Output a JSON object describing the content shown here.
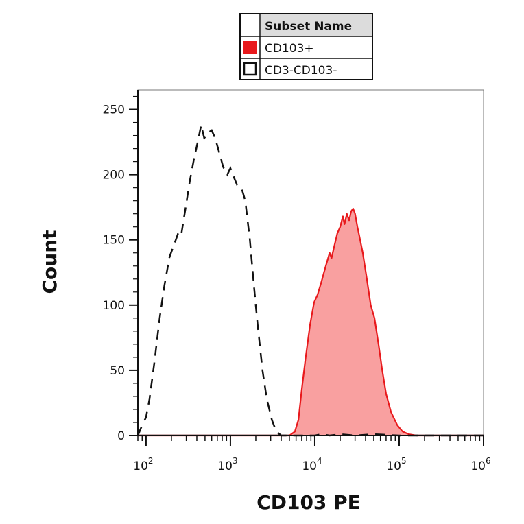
{
  "chart_data": {
    "type": "area",
    "xlabel": "CD103 PE",
    "ylabel": "Count",
    "x_scale": "log",
    "xlim": [
      80,
      1000000
    ],
    "ylim": [
      0,
      265
    ],
    "y_ticks": [
      0,
      50,
      100,
      150,
      200,
      250
    ],
    "x_ticks": [
      {
        "value": 100,
        "base": "10",
        "exp": "2"
      },
      {
        "value": 1000,
        "base": "10",
        "exp": "3"
      },
      {
        "value": 10000,
        "base": "10",
        "exp": "4"
      },
      {
        "value": 100000,
        "base": "10",
        "exp": "5"
      },
      {
        "value": 1000000,
        "base": "10",
        "exp": "6"
      }
    ],
    "legend": {
      "header": "Subset Name",
      "position": "top-center",
      "entries": [
        "CD103+",
        "CD3-CD103-"
      ]
    },
    "series": [
      {
        "name": "CD103+",
        "style": "filled",
        "color": "#e8191c",
        "fill": "#f9a0a0",
        "points": [
          [
            80,
            0
          ],
          [
            4000,
            0
          ],
          [
            5000,
            0
          ],
          [
            5800,
            3
          ],
          [
            6400,
            12
          ],
          [
            7000,
            35
          ],
          [
            7800,
            60
          ],
          [
            8800,
            85
          ],
          [
            9800,
            102
          ],
          [
            10800,
            108
          ],
          [
            12000,
            118
          ],
          [
            13500,
            130
          ],
          [
            15000,
            140
          ],
          [
            15800,
            136
          ],
          [
            17000,
            145
          ],
          [
            18500,
            155
          ],
          [
            20000,
            160
          ],
          [
            21500,
            168
          ],
          [
            22500,
            162
          ],
          [
            24000,
            170
          ],
          [
            25500,
            165
          ],
          [
            27000,
            172
          ],
          [
            28500,
            174
          ],
          [
            30000,
            170
          ],
          [
            32000,
            160
          ],
          [
            34000,
            152
          ],
          [
            37000,
            140
          ],
          [
            41000,
            122
          ],
          [
            46000,
            100
          ],
          [
            51000,
            90
          ],
          [
            57000,
            70
          ],
          [
            63000,
            50
          ],
          [
            70000,
            32
          ],
          [
            80000,
            18
          ],
          [
            95000,
            8
          ],
          [
            110000,
            3
          ],
          [
            130000,
            1
          ],
          [
            160000,
            0
          ],
          [
            1000000,
            0
          ]
        ]
      },
      {
        "name": "CD3-CD103-",
        "style": "dashed",
        "color": "#111111",
        "points": [
          [
            80,
            0
          ],
          [
            90,
            8
          ],
          [
            100,
            14
          ],
          [
            110,
            28
          ],
          [
            125,
            55
          ],
          [
            145,
            90
          ],
          [
            165,
            115
          ],
          [
            190,
            137
          ],
          [
            220,
            148
          ],
          [
            240,
            155
          ],
          [
            260,
            153
          ],
          [
            290,
            172
          ],
          [
            330,
            195
          ],
          [
            370,
            212
          ],
          [
            410,
            225
          ],
          [
            450,
            238
          ],
          [
            490,
            228
          ],
          [
            540,
            232
          ],
          [
            600,
            234
          ],
          [
            660,
            228
          ],
          [
            730,
            218
          ],
          [
            820,
            206
          ],
          [
            920,
            200
          ],
          [
            1000,
            205
          ],
          [
            1100,
            198
          ],
          [
            1200,
            192
          ],
          [
            1350,
            190
          ],
          [
            1500,
            180
          ],
          [
            1700,
            150
          ],
          [
            1900,
            115
          ],
          [
            2100,
            85
          ],
          [
            2400,
            50
          ],
          [
            2700,
            28
          ],
          [
            3100,
            12
          ],
          [
            3500,
            3
          ],
          [
            4000,
            0
          ],
          [
            6000,
            0
          ],
          [
            10000,
            0
          ],
          [
            12000,
            1
          ],
          [
            15000,
            0
          ],
          [
            20000,
            1
          ],
          [
            30000,
            0
          ],
          [
            50000,
            1
          ],
          [
            100000,
            0
          ],
          [
            1000000,
            0
          ]
        ]
      }
    ]
  }
}
